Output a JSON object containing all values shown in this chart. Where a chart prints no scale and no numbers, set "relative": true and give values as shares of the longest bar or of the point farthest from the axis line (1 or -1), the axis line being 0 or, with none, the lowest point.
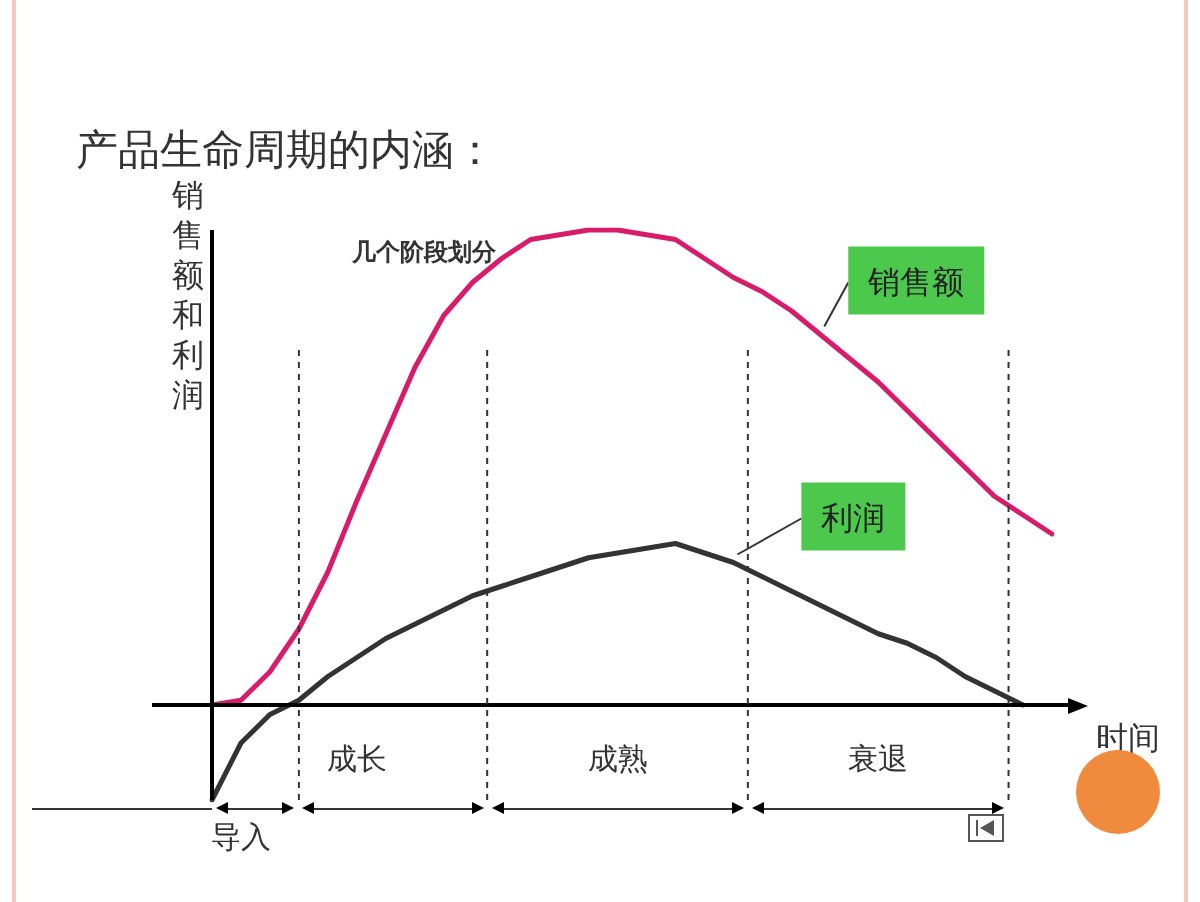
{
  "chart_data": {
    "type": "line",
    "title": "产品生命周期的内涵：",
    "subtitle": "几个阶段划分",
    "xlabel": "时间",
    "ylabel": "销售额和利润",
    "relative": true,
    "tick_labels": "x",
    "marker": "none",
    "line_style": "solid",
    "categories": [
      null,
      "导入",
      null,
      null,
      null,
      "成长",
      null,
      null,
      null,
      null,
      null,
      null,
      null,
      null,
      "成熟",
      null,
      null,
      null,
      null,
      null,
      null,
      null,
      null,
      "衰退",
      null,
      null,
      null,
      null,
      null,
      null
    ],
    "series": [
      {
        "name": "销售额",
        "color": "#d81b6a",
        "values": [
          0,
          0.01,
          0.07,
          0.16,
          0.28,
          0.43,
          0.57,
          0.71,
          0.82,
          0.89,
          0.94,
          0.98,
          0.99,
          1,
          1,
          0.99,
          0.98,
          0.94,
          0.9,
          0.87,
          0.83,
          0.78,
          0.73,
          0.68,
          0.62,
          0.56,
          0.5,
          0.44,
          0.4,
          0.36
        ]
      },
      {
        "name": "利润",
        "color": "#333333",
        "values": [
          -0.2,
          -0.08,
          -0.02,
          0.01,
          0.06,
          0.1,
          0.14,
          0.17,
          0.2,
          0.23,
          0.25,
          0.27,
          0.29,
          0.31,
          0.32,
          0.33,
          0.34,
          0.32,
          0.3,
          0.27,
          0.24,
          0.21,
          0.18,
          0.15,
          0.13,
          0.1,
          0.06,
          0.03,
          0,
          null
        ]
      }
    ]
  }
}
